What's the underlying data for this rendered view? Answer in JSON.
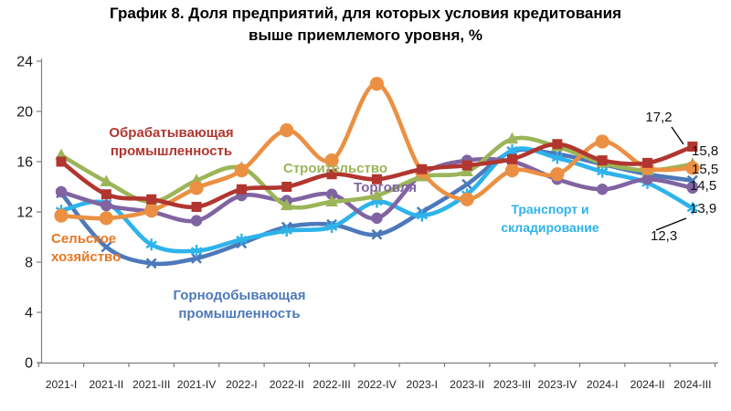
{
  "title": {
    "line1": "График 8. Доля предприятий, для которых условия кредитования",
    "line2": "выше приемлемого уровня, %"
  },
  "chart_data": {
    "type": "line",
    "title": "График 8. Доля предприятий, для которых условия кредитования выше приемлемого уровня, %",
    "xlabel": "",
    "ylabel": "",
    "ylim": [
      0,
      24
    ],
    "yticks": [
      0,
      4,
      8,
      12,
      16,
      20,
      24
    ],
    "grid": false,
    "legend_position": "inline-annotations",
    "smoothed_lines": true,
    "categories": [
      "2021-I",
      "2021-II",
      "2021-III",
      "2021-IV",
      "2022-I",
      "2022-II",
      "2022-III",
      "2022-IV",
      "2023-I",
      "2023-II",
      "2023-III",
      "2023-IV",
      "2024-I",
      "2024-II",
      "2024-III"
    ],
    "series": [
      {
        "id": "mining",
        "name": "Горнодобывающая промышленность",
        "color": "#4D79BA",
        "marker": "x",
        "values": [
          13.5,
          9.2,
          7.9,
          8.3,
          9.5,
          10.8,
          11.0,
          10.2,
          12.0,
          14.2,
          16.8,
          16.6,
          15.8,
          15.0,
          14.5
        ],
        "final_label": "14,5"
      },
      {
        "id": "transport",
        "name": "Транспорт и складирование",
        "color": "#2EB3EA",
        "marker": "asterisk",
        "values": [
          12.1,
          12.7,
          9.4,
          8.9,
          9.8,
          10.5,
          10.8,
          12.8,
          11.7,
          13.4,
          16.9,
          16.3,
          15.2,
          14.3,
          12.3
        ],
        "final_label": "12,3"
      },
      {
        "id": "trade",
        "name": "Торговля",
        "color": "#8064A2",
        "marker": "circle",
        "values": [
          13.6,
          12.5,
          12.0,
          11.3,
          13.3,
          12.9,
          13.4,
          11.5,
          15.0,
          16.1,
          16.0,
          14.6,
          13.8,
          14.6,
          13.9
        ],
        "final_label": "13,9"
      },
      {
        "id": "construction",
        "name": "Строительство",
        "color": "#9BB558",
        "marker": "triangle",
        "values": [
          16.5,
          14.4,
          12.8,
          14.5,
          15.5,
          12.5,
          12.8,
          13.3,
          14.8,
          15.2,
          17.8,
          17.2,
          15.9,
          15.3,
          15.8
        ],
        "final_label": "15,8"
      },
      {
        "id": "agriculture",
        "name": "Сельское хозяйство",
        "color": "#EB9043",
        "marker": "circle-big",
        "values": [
          11.7,
          11.5,
          12.1,
          13.9,
          15.3,
          18.5,
          16.1,
          22.2,
          15.2,
          13.0,
          15.3,
          15.0,
          17.6,
          15.5,
          15.5
        ],
        "final_label": "15,5"
      },
      {
        "id": "manufacturing",
        "name": "Обрабатывающая промышленность",
        "color": "#B1362F",
        "marker": "square",
        "values": [
          16.0,
          13.4,
          13.0,
          12.4,
          13.8,
          14.0,
          15.0,
          14.6,
          15.4,
          15.7,
          16.2,
          17.4,
          16.1,
          15.9,
          17.2
        ],
        "final_label": "17,2"
      }
    ]
  }
}
